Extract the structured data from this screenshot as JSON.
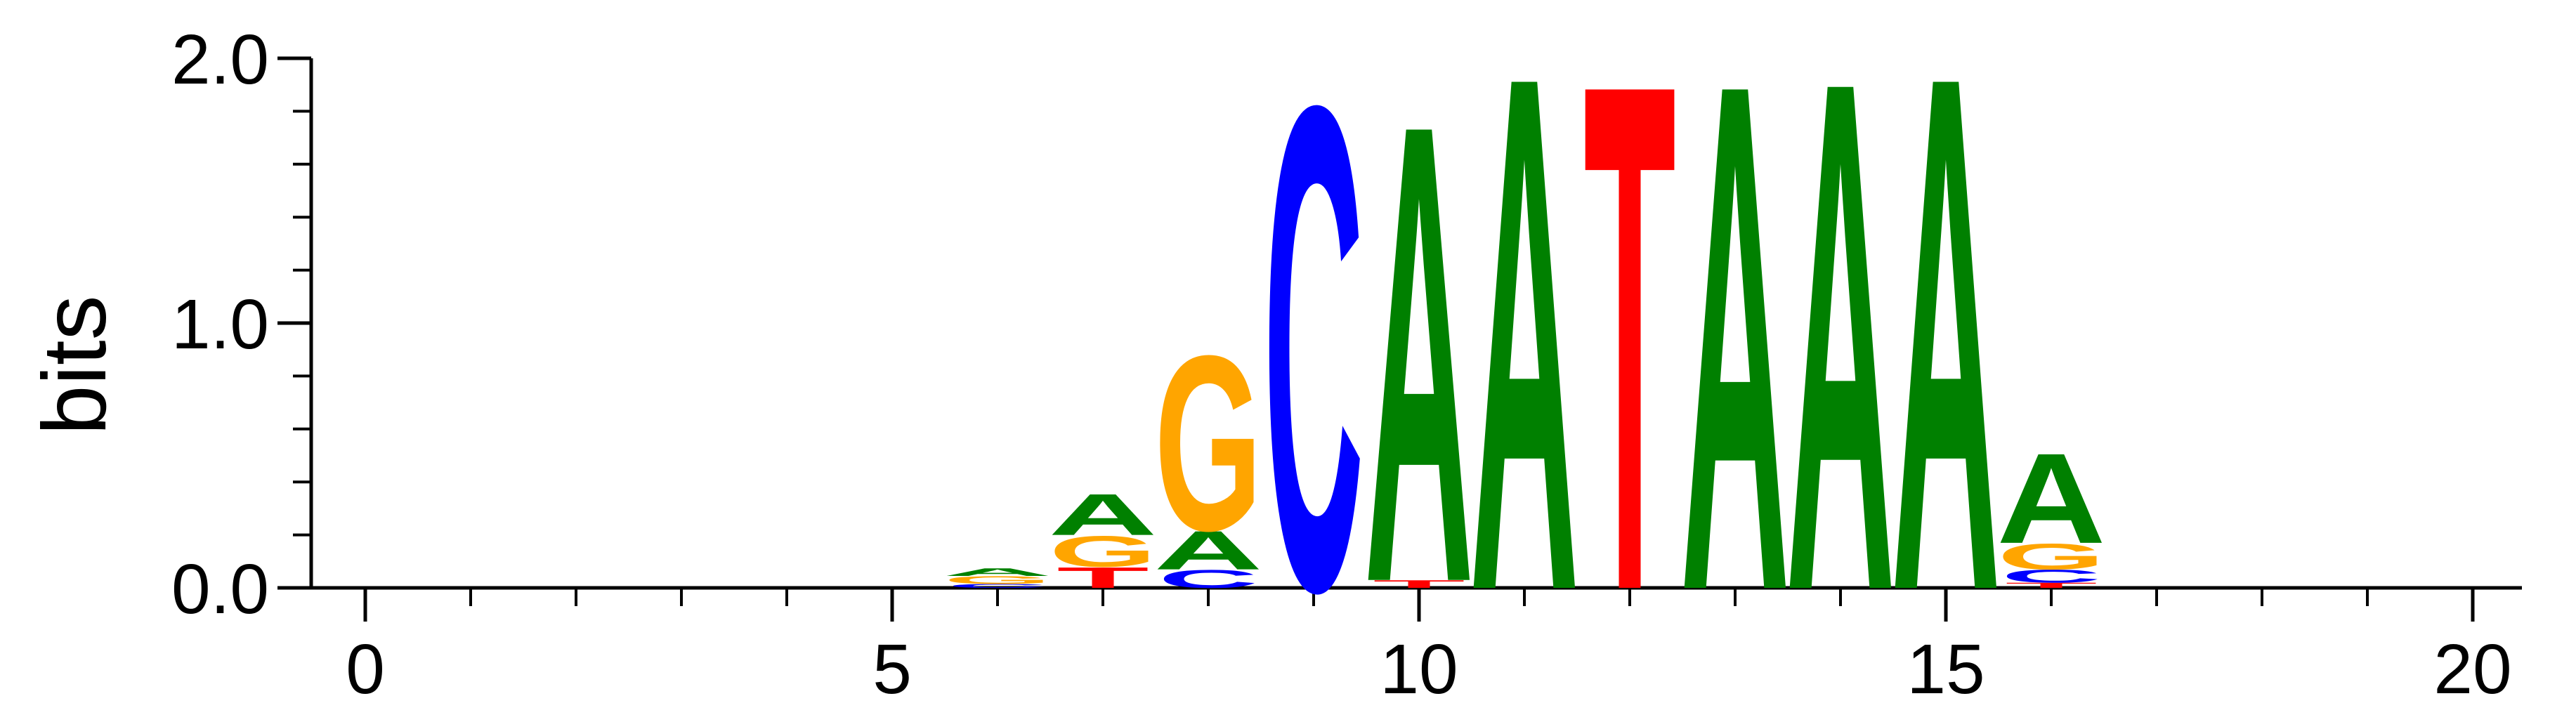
{
  "chart_data": {
    "type": "sequence-logo",
    "ylabel": "bits",
    "ylim": [
      0,
      2.0
    ],
    "y_major_ticks": [
      {
        "value": 0.0,
        "label": "0.0"
      },
      {
        "value": 1.0,
        "label": "1.0"
      },
      {
        "value": 2.0,
        "label": "2.0"
      }
    ],
    "y_minor_step": 0.2,
    "xlim": [
      -0.5,
      20.5
    ],
    "x_major_ticks": [
      {
        "value": 0,
        "label": "0"
      },
      {
        "value": 5,
        "label": "5"
      },
      {
        "value": 10,
        "label": "10"
      },
      {
        "value": 15,
        "label": "15"
      },
      {
        "value": 20,
        "label": "20"
      }
    ],
    "x_minor_step": 1,
    "colors": {
      "A": "#008000",
      "C": "#0000ff",
      "G": "#ffa500",
      "T": "#ff0000"
    },
    "positions": [
      {
        "x": 6,
        "stack": [
          {
            "letter": "C",
            "height": 0.015
          },
          {
            "letter": "G",
            "height": 0.03
          },
          {
            "letter": "A",
            "height": 0.03
          }
        ]
      },
      {
        "x": 7,
        "stack": [
          {
            "letter": "T",
            "height": 0.08
          },
          {
            "letter": "G",
            "height": 0.12
          },
          {
            "letter": "A",
            "height": 0.16
          }
        ]
      },
      {
        "x": 8,
        "stack": [
          {
            "letter": "C",
            "height": 0.07
          },
          {
            "letter": "A",
            "height": 0.15
          },
          {
            "letter": "G",
            "height": 0.68
          }
        ]
      },
      {
        "x": 9,
        "stack": [
          {
            "letter": "C",
            "height": 1.88
          }
        ]
      },
      {
        "x": 10,
        "stack": [
          {
            "letter": "T",
            "height": 0.03
          },
          {
            "letter": "A",
            "height": 1.78
          }
        ]
      },
      {
        "x": 11,
        "stack": [
          {
            "letter": "A",
            "height": 2.0
          }
        ]
      },
      {
        "x": 12,
        "stack": [
          {
            "letter": "T",
            "height": 1.97
          }
        ]
      },
      {
        "x": 13,
        "stack": [
          {
            "letter": "A",
            "height": 1.97
          }
        ]
      },
      {
        "x": 14,
        "stack": [
          {
            "letter": "A",
            "height": 1.98
          }
        ]
      },
      {
        "x": 15,
        "stack": [
          {
            "letter": "A",
            "height": 2.0
          }
        ]
      },
      {
        "x": 16,
        "stack": [
          {
            "letter": "T",
            "height": 0.02
          },
          {
            "letter": "C",
            "height": 0.05
          },
          {
            "letter": "G",
            "height": 0.1
          },
          {
            "letter": "A",
            "height": 0.35
          }
        ]
      }
    ]
  }
}
